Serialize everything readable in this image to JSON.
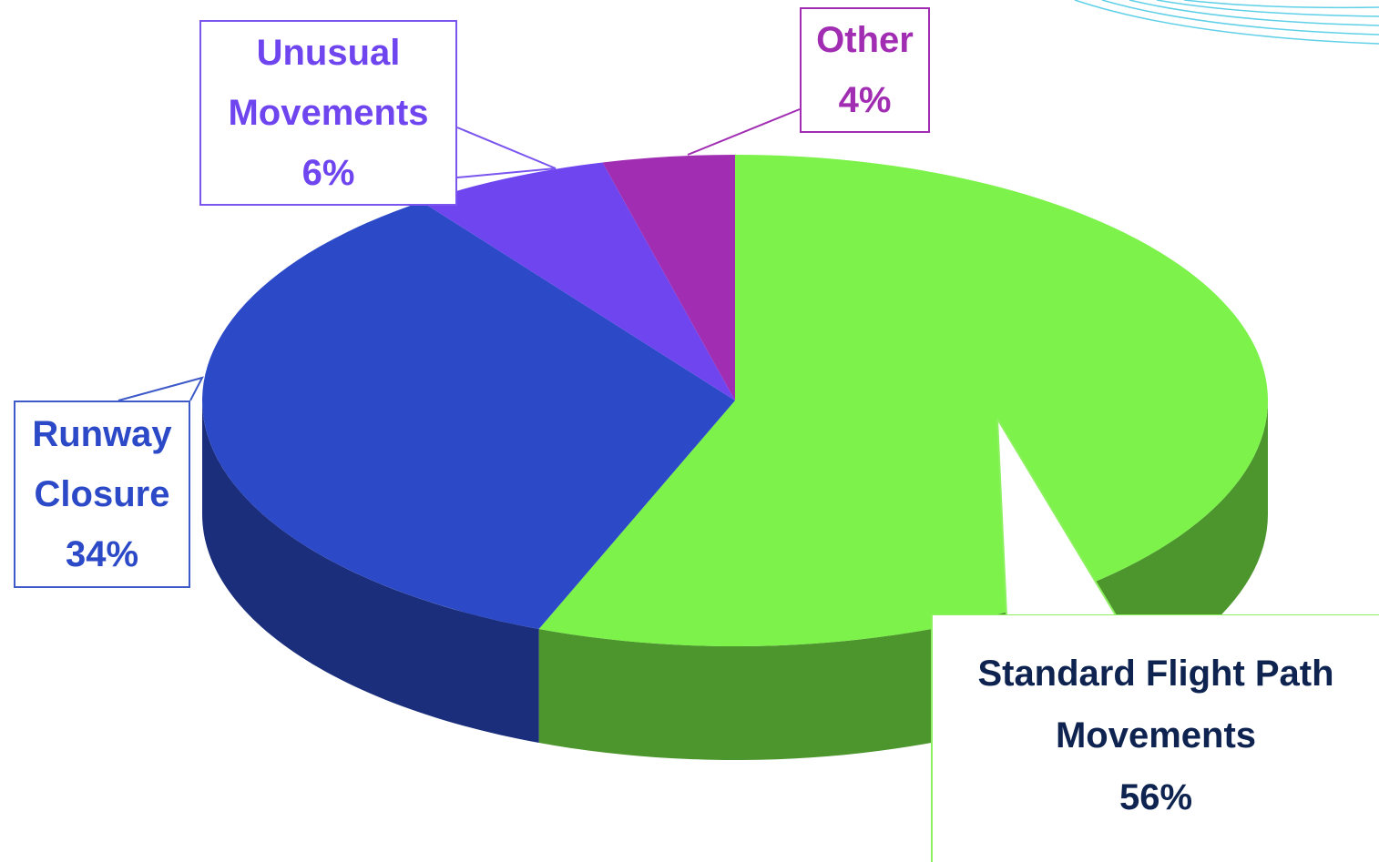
{
  "chart_data": {
    "type": "pie3d",
    "categories": [
      "Standard Flight Path Movements",
      "Runway Closure",
      "Unusual Movements",
      "Other"
    ],
    "values": [
      56,
      34,
      6,
      4
    ],
    "value_labels": [
      "56%",
      "34%",
      "6%",
      "4%"
    ],
    "colors": [
      "#7cf24a",
      "#2c4ac8",
      "#6e45ef",
      "#a12db3"
    ],
    "label_colors": [
      "#0e2350",
      "#2c4ac8",
      "#6e45ef",
      "#a12db3"
    ],
    "border_colors": [
      "#8cf060",
      "#3d5ac8",
      "#7a55ef",
      "#a12db3"
    ]
  }
}
